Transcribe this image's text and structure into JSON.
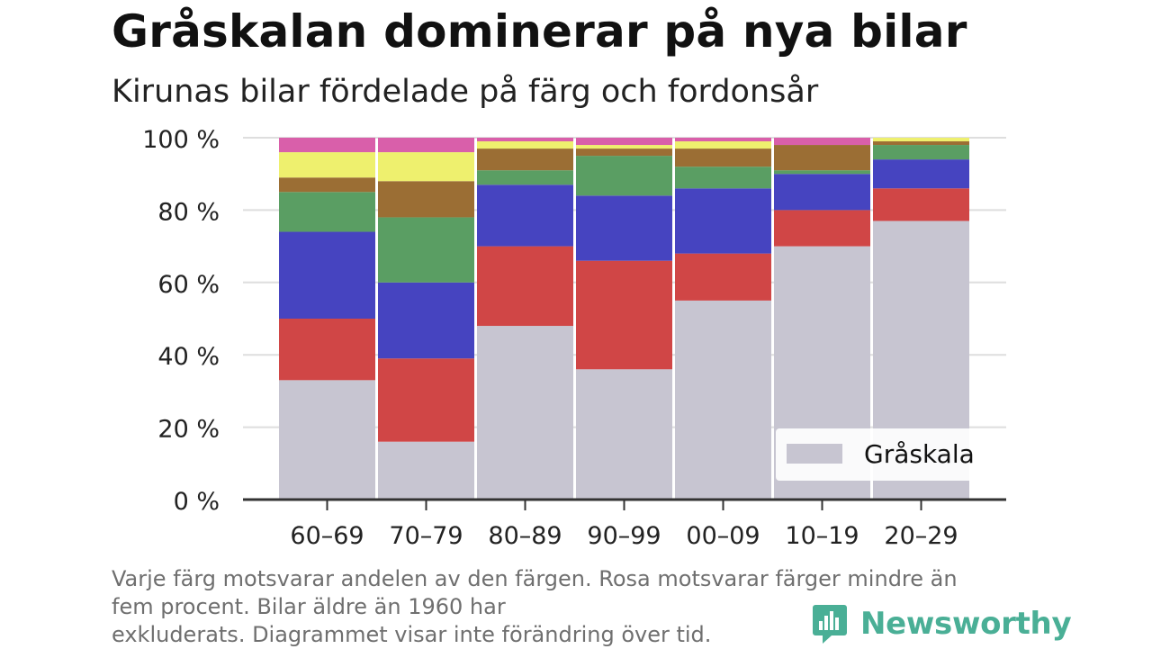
{
  "title": "Gråskalan dominerar på nya bilar",
  "subtitle": "Kirunas bilar fördelade på färg och fordonsår",
  "chart_data": {
    "type": "bar",
    "stacked": true,
    "categories": [
      "60–69",
      "70–79",
      "80–89",
      "90–99",
      "00–09",
      "10–19",
      "20–29"
    ],
    "y_ticks": [
      "0 %",
      "20 %",
      "40 %",
      "60 %",
      "80 %",
      "100 %"
    ],
    "ylim": [
      0,
      100
    ],
    "grid": true,
    "legend_position": "bottom-right",
    "series": [
      {
        "name": "Gråskala",
        "color": "#c7c5d1",
        "values": [
          33,
          16,
          48,
          36,
          55,
          70,
          77
        ]
      },
      {
        "color": "#d04646",
        "values": [
          17,
          23,
          22,
          30,
          13,
          10,
          9
        ]
      },
      {
        "color": "#4644c0",
        "values": [
          24,
          21,
          17,
          18,
          18,
          10,
          8
        ]
      },
      {
        "color": "#5a9e63",
        "values": [
          11,
          18,
          4,
          11,
          6,
          1,
          4
        ]
      },
      {
        "color": "#9b6e34",
        "values": [
          4,
          10,
          6,
          2,
          5,
          7,
          1
        ]
      },
      {
        "color": "#eef06e",
        "values": [
          7,
          8,
          2,
          1,
          2,
          0,
          1
        ]
      },
      {
        "color": "#d95faa",
        "values": [
          4,
          4,
          1,
          2,
          1,
          2,
          0
        ]
      }
    ]
  },
  "footnote": {
    "line1": "Varje färg motsvarar andelen av den färgen. Rosa motsvarar färger mindre än",
    "line2": "fem procent. Bilar äldre än 1960 har",
    "line3": "exkluderats. Diagrammet visar inte förändring över tid."
  },
  "brand": {
    "name": "Newsworthy",
    "logo_icon": "newsworthy-logo-icon",
    "color": "#4aaf96"
  }
}
